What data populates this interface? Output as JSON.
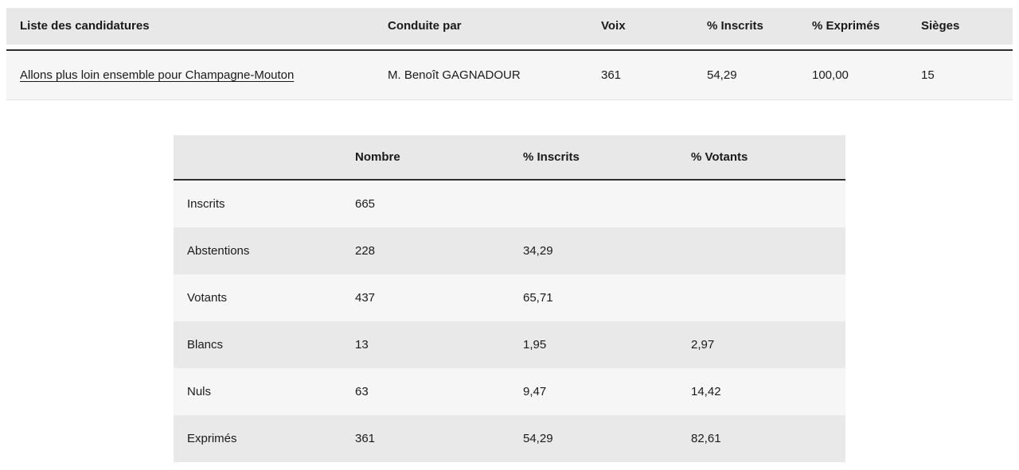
{
  "colors": {
    "header_bg": "#e8e8e8",
    "row_light": "#f6f6f6",
    "row_alt": "#e9e9e9",
    "divider": "#2e2e2e",
    "text": "#1a1a1a",
    "page_bg": "#ffffff"
  },
  "candidates_table": {
    "headers": [
      "Liste des candidatures",
      "Conduite par",
      "Voix",
      "% Inscrits",
      "% Exprimés",
      "Sièges"
    ],
    "row": {
      "liste": "Allons plus loin ensemble pour Champagne-Mouton",
      "conduite_par": "M. Benoît GAGNADOUR",
      "voix": "361",
      "pct_inscrits": "54,29",
      "pct_exprimes": "100,00",
      "sieges": "15"
    }
  },
  "participation_table": {
    "headers": [
      "",
      "Nombre",
      "% Inscrits",
      "% Votants"
    ],
    "rows": [
      [
        "Inscrits",
        "665",
        "",
        ""
      ],
      [
        "Abstentions",
        "228",
        "34,29",
        ""
      ],
      [
        "Votants",
        "437",
        "65,71",
        ""
      ],
      [
        "Blancs",
        "13",
        "1,95",
        "2,97"
      ],
      [
        "Nuls",
        "63",
        "9,47",
        "14,42"
      ],
      [
        "Exprimés",
        "361",
        "54,29",
        "82,61"
      ]
    ]
  }
}
